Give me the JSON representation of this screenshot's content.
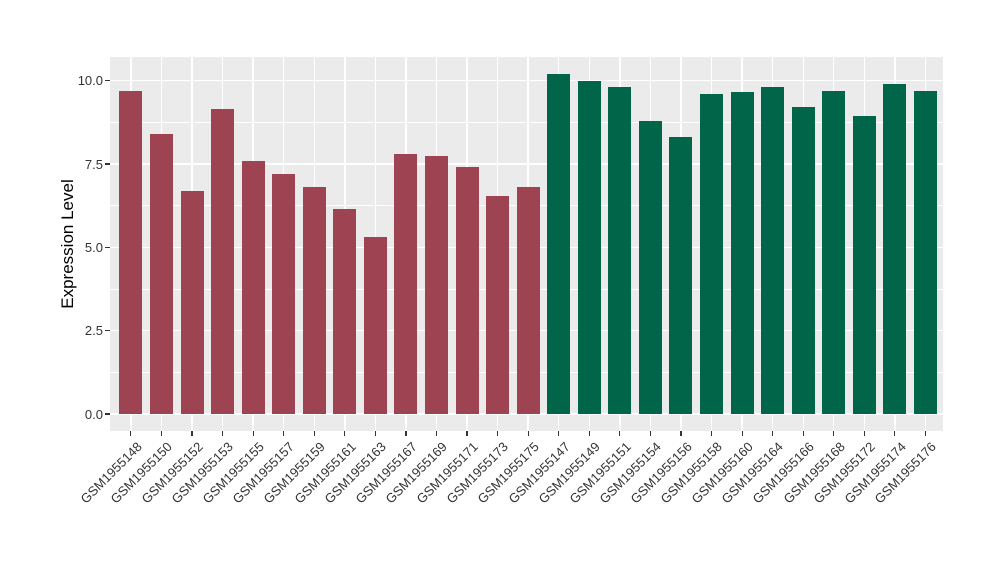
{
  "chart_data": {
    "type": "bar",
    "title": "",
    "xlabel": "",
    "ylabel": "Expression Level",
    "ylim": [
      0,
      10.71
    ],
    "yticks": [
      {
        "value": 0,
        "label": "0.0"
      },
      {
        "value": 2.5,
        "label": "2.5"
      },
      {
        "value": 5,
        "label": "5.0"
      },
      {
        "value": 7.5,
        "label": "7.5"
      },
      {
        "value": 10,
        "label": "10.0"
      }
    ],
    "yticks_minor": [
      1.25,
      3.75,
      6.25,
      8.75
    ],
    "grid": "on",
    "legend": "none",
    "panel_background": "#EBEBEB",
    "grid_color": "#FFFFFF",
    "axis_text_color": "#333333",
    "groups": [
      {
        "name": "group-1",
        "color": "#9E4351"
      },
      {
        "name": "group-2",
        "color": "#016549"
      }
    ],
    "bars": [
      {
        "label": "GSM1955148",
        "value": 9.7,
        "group": 0
      },
      {
        "label": "GSM1955150",
        "value": 8.4,
        "group": 0
      },
      {
        "label": "GSM1955152",
        "value": 6.7,
        "group": 0
      },
      {
        "label": "GSM1955153",
        "value": 9.15,
        "group": 0
      },
      {
        "label": "GSM1955155",
        "value": 7.6,
        "group": 0
      },
      {
        "label": "GSM1955157",
        "value": 7.2,
        "group": 0
      },
      {
        "label": "GSM1955159",
        "value": 6.8,
        "group": 0
      },
      {
        "label": "GSM1955161",
        "value": 6.15,
        "group": 0
      },
      {
        "label": "GSM1955163",
        "value": 5.3,
        "group": 0
      },
      {
        "label": "GSM1955167",
        "value": 7.8,
        "group": 0
      },
      {
        "label": "GSM1955169",
        "value": 7.75,
        "group": 0
      },
      {
        "label": "GSM1955171",
        "value": 7.4,
        "group": 0
      },
      {
        "label": "GSM1955173",
        "value": 6.55,
        "group": 0
      },
      {
        "label": "GSM1955175",
        "value": 6.8,
        "group": 0
      },
      {
        "label": "GSM1955147",
        "value": 10.2,
        "group": 1
      },
      {
        "label": "GSM1955149",
        "value": 10.0,
        "group": 1
      },
      {
        "label": "GSM1955151",
        "value": 9.8,
        "group": 1
      },
      {
        "label": "GSM1955154",
        "value": 8.8,
        "group": 1
      },
      {
        "label": "GSM1955156",
        "value": 8.3,
        "group": 1
      },
      {
        "label": "GSM1955158",
        "value": 9.6,
        "group": 1
      },
      {
        "label": "GSM1955160",
        "value": 9.65,
        "group": 1
      },
      {
        "label": "GSM1955164",
        "value": 9.8,
        "group": 1
      },
      {
        "label": "GSM1955166",
        "value": 9.2,
        "group": 1
      },
      {
        "label": "GSM1955168",
        "value": 9.7,
        "group": 1
      },
      {
        "label": "GSM1955172",
        "value": 8.95,
        "group": 1
      },
      {
        "label": "GSM1955174",
        "value": 9.9,
        "group": 1
      },
      {
        "label": "GSM1955176",
        "value": 9.7,
        "group": 1
      }
    ]
  }
}
